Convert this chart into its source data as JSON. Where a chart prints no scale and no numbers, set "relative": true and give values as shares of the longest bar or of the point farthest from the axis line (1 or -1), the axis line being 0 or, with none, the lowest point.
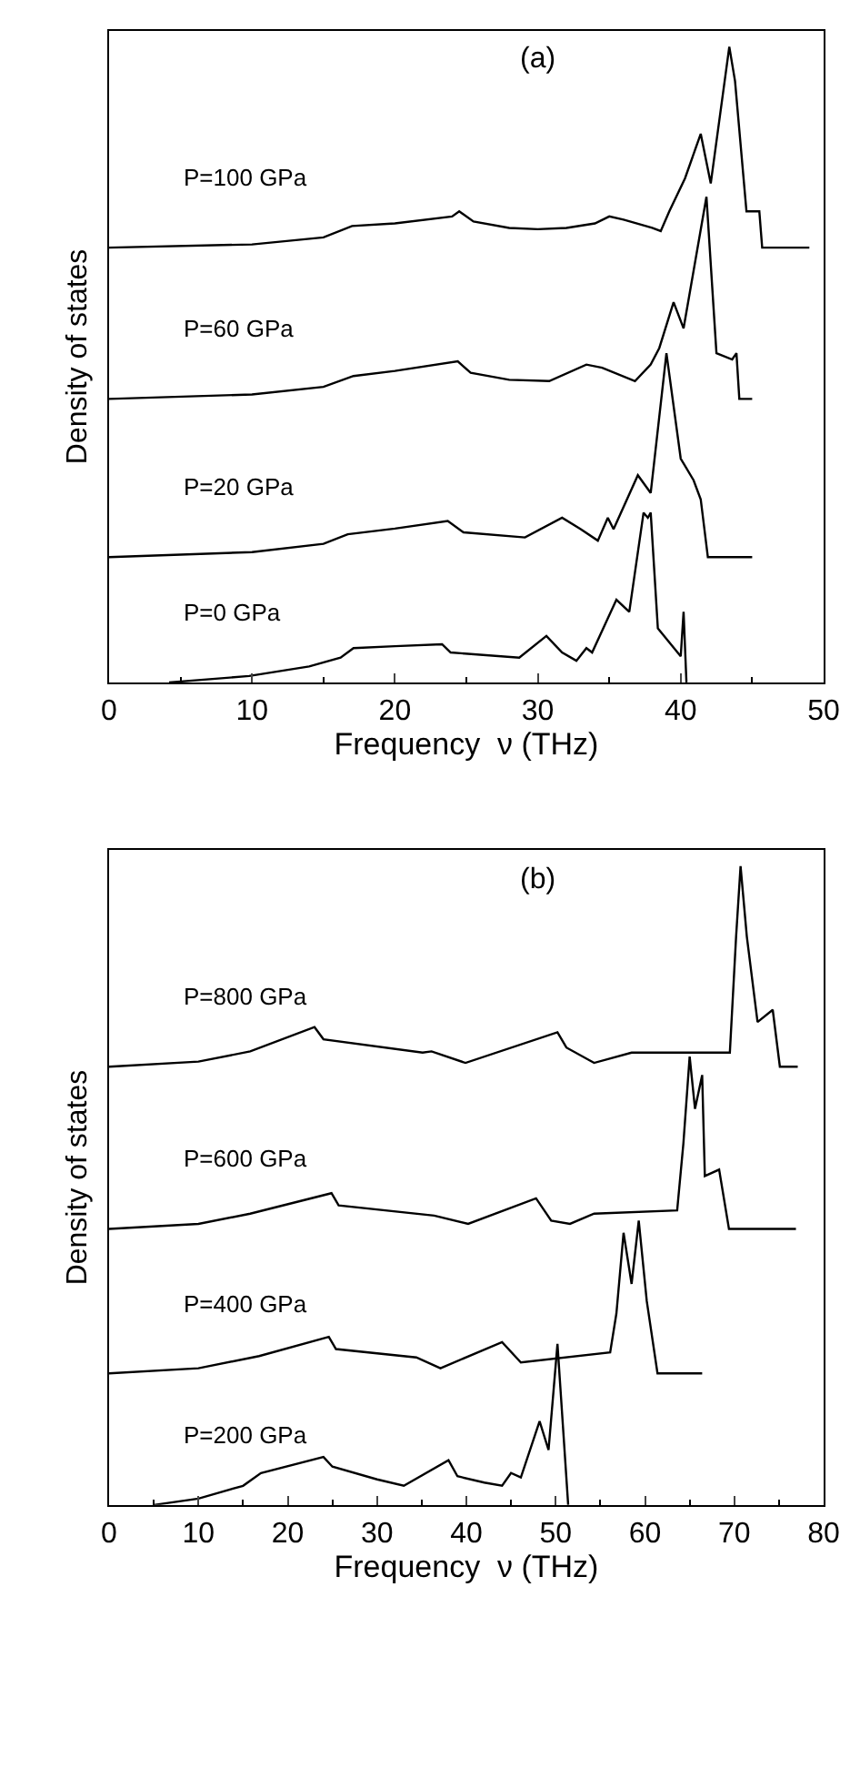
{
  "chart_data": [
    {
      "type": "line",
      "title": "(a)",
      "xlabel": "Frequency  ν (THz)",
      "ylabel": "Density of states",
      "relative": true,
      "xlim": [
        0,
        50
      ],
      "xticks": [
        0,
        10,
        20,
        30,
        40,
        50
      ],
      "series": [
        {
          "name": "P=100 GPa",
          "color": "#000000",
          "x": [
            0,
            10,
            15,
            17,
            20,
            24,
            24.5,
            25.5,
            28,
            30,
            32,
            34,
            35,
            36,
            38,
            38.6,
            39.2,
            40.3,
            41.4,
            42.1,
            43.4,
            43.8,
            44.6,
            45.5,
            45.7,
            49
          ],
          "values": [
            0.684,
            0.689,
            0.7,
            0.718,
            0.722,
            0.733,
            0.741,
            0.725,
            0.715,
            0.713,
            0.715,
            0.722,
            0.733,
            0.728,
            0.715,
            0.71,
            0.741,
            0.793,
            0.863,
            0.785,
            1.0,
            0.946,
            0.741,
            0.741,
            0.684,
            0.684
          ]
        },
        {
          "name": "P=60 GPa",
          "color": "#000000",
          "x": [
            0,
            10,
            15,
            17.1,
            20,
            24.4,
            25.3,
            28,
            30.8,
            33.4,
            34.5,
            36.8,
            37.9,
            38.5,
            39.5,
            40.2,
            41.8,
            42.5,
            43.6,
            43.9,
            44.1,
            45
          ],
          "values": [
            0.446,
            0.453,
            0.465,
            0.482,
            0.49,
            0.505,
            0.487,
            0.476,
            0.474,
            0.5,
            0.495,
            0.474,
            0.5,
            0.526,
            0.598,
            0.557,
            0.764,
            0.518,
            0.508,
            0.518,
            0.446,
            0.446
          ]
        },
        {
          "name": "P=20 GPa",
          "color": "#000000",
          "x": [
            0,
            10,
            15,
            16.7,
            20,
            23.7,
            24.8,
            29.1,
            31.7,
            33,
            34.2,
            34.9,
            35.3,
            37,
            37.9,
            39,
            40,
            40.9,
            41.4,
            41.9,
            45
          ],
          "values": [
            0.197,
            0.205,
            0.218,
            0.233,
            0.242,
            0.254,
            0.236,
            0.228,
            0.259,
            0.241,
            0.223,
            0.259,
            0.241,
            0.326,
            0.298,
            0.518,
            0.352,
            0.318,
            0.288,
            0.197,
            0.197
          ]
        },
        {
          "name": "P=0 GPa",
          "color": "#000000",
          "x": [
            4.2,
            9.8,
            14,
            16.2,
            17.1,
            20,
            23.3,
            23.9,
            28.7,
            30.6,
            31.7,
            32.7,
            33.4,
            33.8,
            35.5,
            36.4,
            37.4,
            37.7,
            37.9,
            38.4,
            40,
            40.2,
            40.4
          ],
          "values": [
            0.0,
            0.01,
            0.025,
            0.039,
            0.054,
            0.057,
            0.06,
            0.047,
            0.039,
            0.073,
            0.047,
            0.034,
            0.054,
            0.047,
            0.13,
            0.111,
            0.267,
            0.259,
            0.267,
            0.085,
            0.041,
            0.111,
            0.0
          ]
        }
      ]
    },
    {
      "type": "line",
      "title": "(b)",
      "xlabel": "Frequency  ν (THz)",
      "ylabel": "Density of states",
      "relative": true,
      "xlim": [
        0,
        80
      ],
      "xticks": [
        0,
        10,
        20,
        30,
        40,
        50,
        60,
        70,
        80
      ],
      "series": [
        {
          "name": "P=800 GPa",
          "color": "#000000",
          "x": [
            0,
            10,
            15.8,
            23,
            24,
            35.1,
            36.1,
            39.9,
            50.2,
            51.2,
            54.3,
            58.5,
            69.5,
            70.2,
            70.7,
            71.4,
            72.6,
            74.3,
            75.1,
            77.1
          ],
          "values": [
            0.686,
            0.694,
            0.71,
            0.748,
            0.729,
            0.708,
            0.71,
            0.692,
            0.74,
            0.716,
            0.692,
            0.708,
            0.708,
            0.89,
            1.0,
            0.89,
            0.756,
            0.775,
            0.686,
            0.686
          ]
        },
        {
          "name": "P=600 GPa",
          "color": "#000000",
          "x": [
            0,
            10,
            15.8,
            24.9,
            25.7,
            36.4,
            40.2,
            47.8,
            49.5,
            51.6,
            54.3,
            63.6,
            64.3,
            65,
            65.6,
            66.4,
            66.7,
            68.3,
            69.4,
            76.9
          ],
          "values": [
            0.432,
            0.44,
            0.456,
            0.488,
            0.469,
            0.453,
            0.44,
            0.48,
            0.445,
            0.44,
            0.456,
            0.461,
            0.566,
            0.702,
            0.62,
            0.673,
            0.515,
            0.525,
            0.432,
            0.432
          ]
        },
        {
          "name": "P=400 GPa",
          "color": "#000000",
          "x": [
            0,
            10,
            16.8,
            24.6,
            25.4,
            34.4,
            37.1,
            44,
            46.1,
            56.1,
            56.8,
            57.6,
            58.5,
            59.3,
            60.2,
            61.4,
            66.4
          ],
          "values": [
            0.206,
            0.214,
            0.233,
            0.263,
            0.244,
            0.231,
            0.214,
            0.255,
            0.223,
            0.239,
            0.3,
            0.426,
            0.346,
            0.445,
            0.319,
            0.206,
            0.206
          ]
        },
        {
          "name": "P=200 GPa",
          "color": "#000000",
          "x": [
            5,
            10,
            15,
            17,
            24,
            25,
            30,
            33,
            38,
            39,
            42,
            44,
            45,
            46.1,
            48.2,
            49.2,
            50.2,
            51.4
          ],
          "values": [
            0.0,
            0.01,
            0.03,
            0.05,
            0.075,
            0.06,
            0.04,
            0.03,
            0.07,
            0.045,
            0.035,
            0.03,
            0.05,
            0.043,
            0.131,
            0.086,
            0.252,
            0.0
          ]
        }
      ]
    }
  ]
}
